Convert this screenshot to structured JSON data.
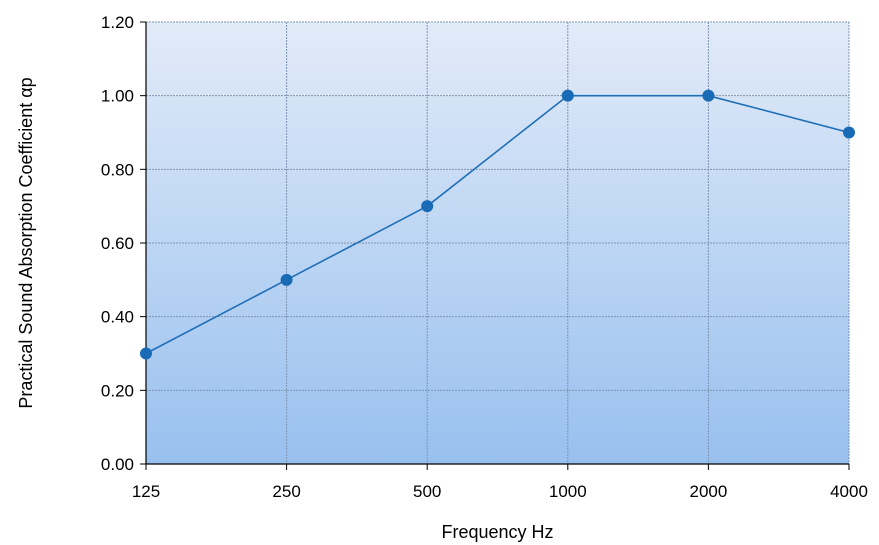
{
  "chart_data": {
    "type": "line",
    "title": "",
    "xlabel": "Frequency Hz",
    "ylabel": "Practical Sound Absorption Coefficient αp",
    "categories": [
      "125",
      "250",
      "500",
      "1000",
      "2000",
      "4000"
    ],
    "series": [
      {
        "values": [
          0.3,
          0.5,
          0.7,
          1.0,
          1.0,
          0.9
        ]
      }
    ],
    "ylim": [
      0,
      1.2
    ],
    "yticks": [
      "0.00",
      "0.20",
      "0.40",
      "0.60",
      "0.80",
      "1.00",
      "1.20"
    ],
    "grid": true,
    "legend": "none",
    "colors": {
      "line": "#1f6fb8",
      "marker": "#1a6bb5",
      "grid": "#7f94b3",
      "plot_bg_top": "#e2ebf8",
      "plot_bg_bottom": "#98c0ef"
    }
  }
}
